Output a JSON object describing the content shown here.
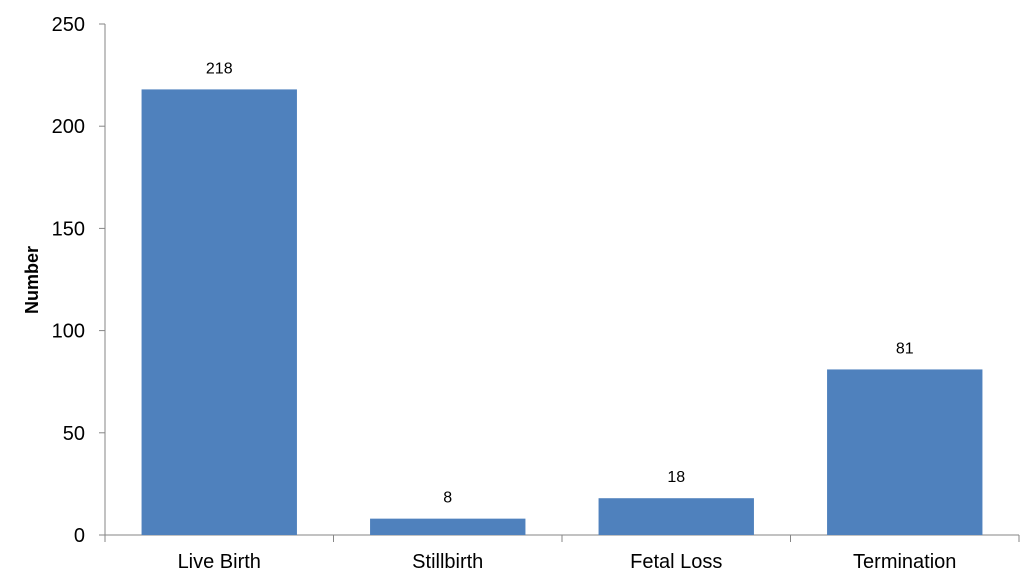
{
  "chart_data": {
    "type": "bar",
    "title": "",
    "xlabel": "",
    "ylabel": "Number",
    "categories": [
      "Live Birth",
      "Stillbirth",
      "Fetal Loss",
      "Termination"
    ],
    "values": [
      218,
      8,
      18,
      81
    ],
    "data_labels": [
      "218",
      "8",
      "18",
      "81"
    ],
    "ylim": [
      0,
      250
    ],
    "yticks": [
      0,
      50,
      100,
      150,
      200,
      250
    ],
    "ytick_labels": [
      "0",
      "50",
      "100",
      "150",
      "200",
      "250"
    ],
    "grid": false,
    "legend": "none",
    "bar_color": "#4f81bd",
    "axis_color": "#868686"
  }
}
